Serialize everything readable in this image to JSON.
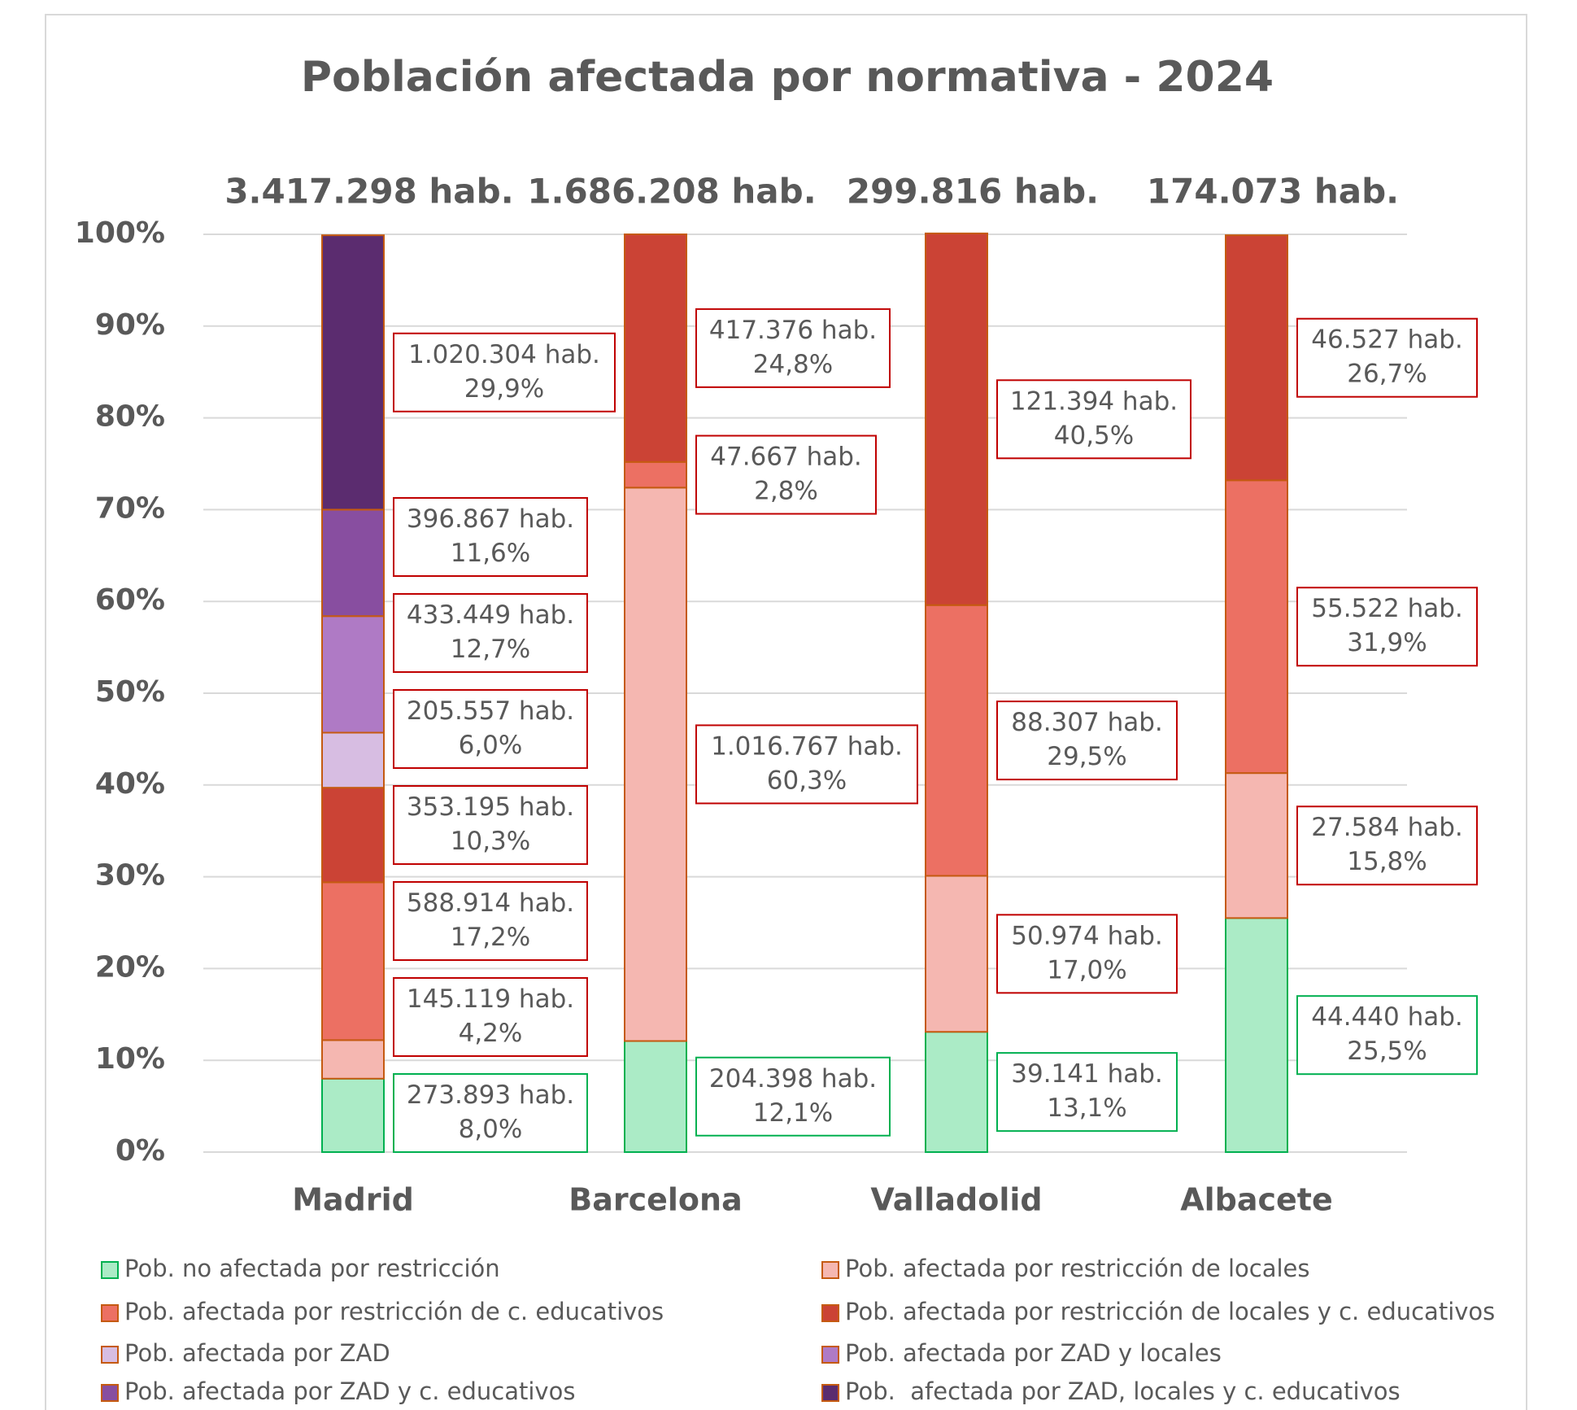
{
  "chart_data": {
    "type": "stacked_bar_percent",
    "title": "Población afectada por normativa - 2024",
    "categories": [
      "Madrid",
      "Barcelona",
      "Valladolid",
      "Albacete"
    ],
    "totals": [
      "3.417.298 hab.",
      "1.686.208 hab.",
      "299.816 hab.",
      "174.073 hab."
    ],
    "ylim": [
      0,
      100
    ],
    "yticks": [
      {
        "value": 0,
        "label": "0%"
      },
      {
        "value": 10,
        "label": "10%"
      },
      {
        "value": 20,
        "label": "20%"
      },
      {
        "value": 30,
        "label": "30%"
      },
      {
        "value": 40,
        "label": "40%"
      },
      {
        "value": 50,
        "label": "50%"
      },
      {
        "value": 60,
        "label": "60%"
      },
      {
        "value": 70,
        "label": "70%"
      },
      {
        "value": 80,
        "label": "80%"
      },
      {
        "value": 90,
        "label": "90%"
      },
      {
        "value": 100,
        "label": "100%"
      }
    ],
    "grid": true,
    "legend": "bottom",
    "series": [
      {
        "name": "Pob. no afectada por restricción",
        "color": "#abebc6",
        "values": [
          8.0,
          12.1,
          13.1,
          25.5
        ],
        "value_labels": [
          "8,0%",
          "12,1%",
          "13,1%",
          "25,5%"
        ],
        "count_labels": [
          "273.893 hab.",
          "204.398 hab.",
          "39.141 hab.",
          "44.440 hab."
        ]
      },
      {
        "name": "Pob. afectada por restricción de locales",
        "color": "#f5b7b1",
        "values": [
          4.2,
          60.3,
          17.0,
          15.8
        ],
        "value_labels": [
          "4,2%",
          "60,3%",
          "17,0%",
          "15,8%"
        ],
        "count_labels": [
          "145.119 hab.",
          "1.016.767 hab.",
          "50.974 hab.",
          "27.584 hab."
        ]
      },
      {
        "name": "Pob. afectada por restricción de c. educativos",
        "color": "#ec7063",
        "values": [
          17.2,
          2.8,
          29.5,
          31.9
        ],
        "value_labels": [
          "17,2%",
          "2,8%",
          "29,5%",
          "31,9%"
        ],
        "count_labels": [
          "588.914 hab.",
          "47.667 hab.",
          "88.307 hab.",
          "55.522 hab."
        ]
      },
      {
        "name": "Pob. afectada por restricción de locales y c. educativos",
        "color": "#cb4335",
        "values": [
          10.3,
          24.8,
          40.5,
          26.7
        ],
        "value_labels": [
          "10,3%",
          "24,8%",
          "40,5%",
          "26,7%"
        ],
        "count_labels": [
          "353.195 hab.",
          "417.376 hab.",
          "121.394 hab.",
          "46.527 hab."
        ]
      },
      {
        "name": "Pob. afectada por ZAD",
        "color": "#d7bde2",
        "values": [
          6.0,
          null,
          null,
          null
        ],
        "value_labels": [
          "6,0%",
          null,
          null,
          null
        ],
        "count_labels": [
          "205.557 hab.",
          null,
          null,
          null
        ]
      },
      {
        "name": "Pob. afectada por ZAD y locales",
        "color": "#af7ac5",
        "values": [
          12.7,
          null,
          null,
          null
        ],
        "value_labels": [
          "12,7%",
          null,
          null,
          null
        ],
        "count_labels": [
          "433.449 hab.",
          null,
          null,
          null
        ]
      },
      {
        "name": "Pob. afectada por ZAD y c. educativos",
        "color": "#884ea0",
        "values": [
          11.6,
          null,
          null,
          null
        ],
        "value_labels": [
          "11,6%",
          null,
          null,
          null
        ],
        "count_labels": [
          "396.867 hab.",
          null,
          null,
          null
        ]
      },
      {
        "name": "Pob.  afectada por ZAD, locales y c. educativos",
        "color": "#5b2c6f",
        "values": [
          29.9,
          null,
          null,
          null
        ],
        "value_labels": [
          "29,9%",
          null,
          null,
          null
        ],
        "count_labels": [
          "1.020.304 hab.",
          null,
          null,
          null
        ]
      }
    ]
  }
}
